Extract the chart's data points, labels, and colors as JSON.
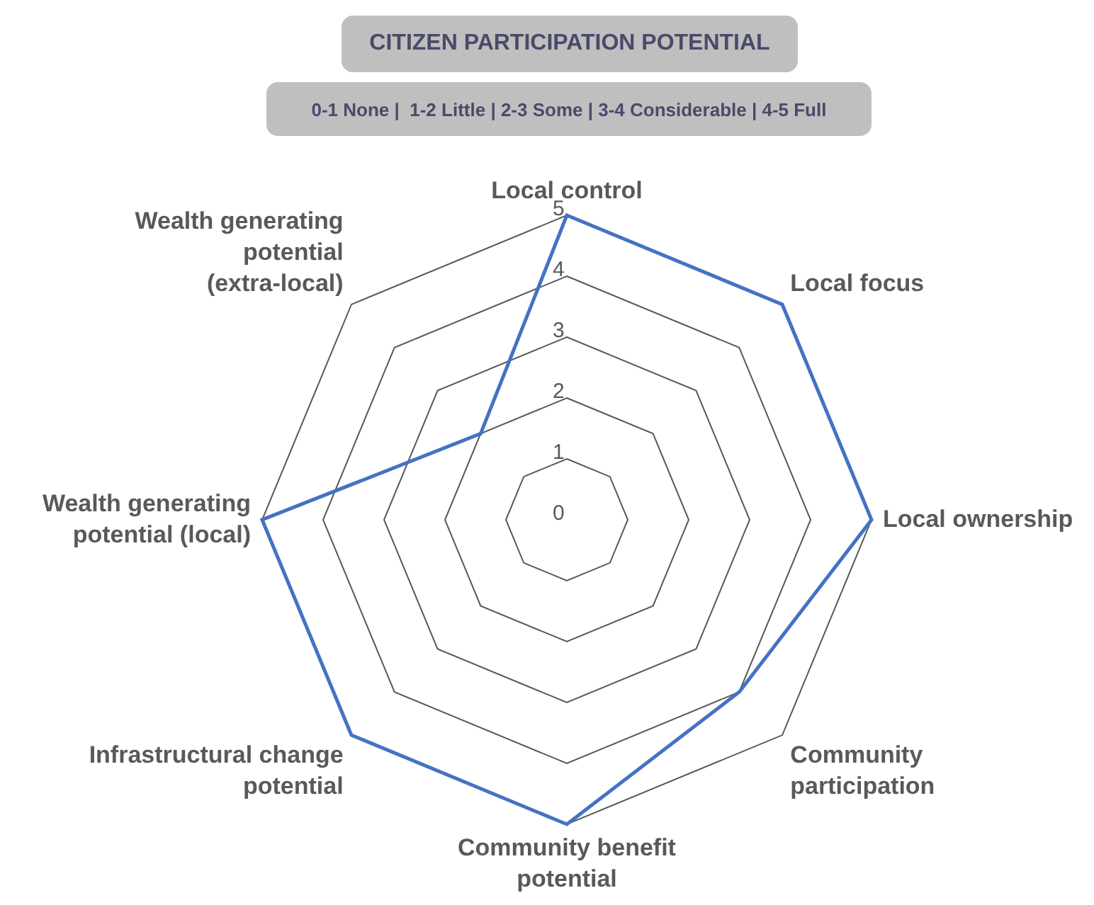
{
  "chart_data": {
    "type": "radar",
    "title": "CITIZEN PARTICIPATION POTENTIAL",
    "subtitle": "0-1 None |  1-2 Little | 2-3 Some | 3-4 Considerable | 4-5 Full",
    "categories": [
      "Local control",
      "Local focus",
      "Local ownership",
      "Community participation",
      "Community benefit potential",
      "Infrastructural change potential",
      "Wealth generating potential (local)",
      "Wealth generating potential (extra-local)"
    ],
    "series": [
      {
        "color": "#4472c4",
        "values": [
          5,
          5,
          5,
          4,
          5,
          5,
          5,
          2
        ]
      }
    ],
    "ylim": [
      0,
      5
    ],
    "yticks": [
      0,
      1,
      2,
      3,
      4,
      5
    ],
    "grid": true,
    "legend": false,
    "marker": "none"
  }
}
